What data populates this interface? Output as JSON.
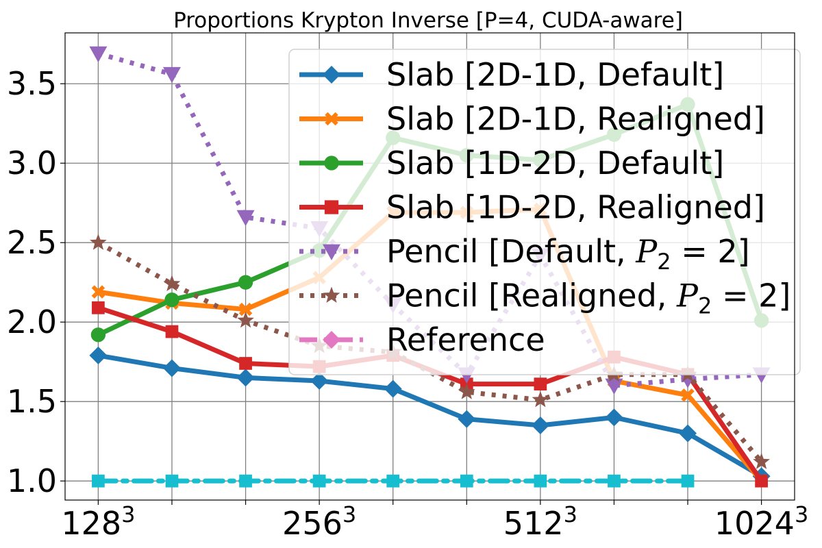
{
  "chart_data": {
    "type": "line",
    "title": "Proportions Krypton Inverse [P=4, CUDA-aware]",
    "xlabel": "",
    "ylabel": "",
    "x_positions": [
      0,
      1,
      2,
      3,
      4,
      5,
      6,
      7,
      8,
      9
    ],
    "x_tick_labels": [
      {
        "pos": 0,
        "base": "128",
        "exp": "3"
      },
      {
        "pos": 3,
        "base": "256",
        "exp": "3"
      },
      {
        "pos": 6,
        "base": "512",
        "exp": "3"
      },
      {
        "pos": 9,
        "base": "1024",
        "exp": "3"
      }
    ],
    "ylim": [
      0.88,
      3.82
    ],
    "y_ticks": [
      1.0,
      1.5,
      2.0,
      2.5,
      3.0,
      3.5
    ],
    "y_tick_labels": [
      "1.0",
      "1.5",
      "2.0",
      "2.5",
      "3.0",
      "3.5"
    ],
    "grid": true,
    "legend_position": "upper-right",
    "series": [
      {
        "name": "Slab [2D-1D, Default]",
        "color": "#1f77b4",
        "marker": "diamond",
        "dash": "solid",
        "values": [
          1.79,
          1.71,
          1.65,
          1.63,
          1.58,
          1.39,
          1.35,
          1.4,
          1.3,
          1.03
        ]
      },
      {
        "name": "Slab [2D-1D, Realigned]",
        "color": "#ff7f0e",
        "marker": "x",
        "dash": "solid",
        "values": [
          2.19,
          2.12,
          2.08,
          2.28,
          2.69,
          2.69,
          2.71,
          1.63,
          1.54,
          1.0
        ]
      },
      {
        "name": "Slab [1D-2D, Default]",
        "color": "#2ca02c",
        "marker": "circle",
        "dash": "solid",
        "values": [
          1.92,
          2.14,
          2.25,
          2.45,
          3.16,
          3.05,
          3.02,
          3.18,
          3.37,
          2.01
        ]
      },
      {
        "name": "Slab [1D-2D, Realigned]",
        "color": "#d62728",
        "marker": "square",
        "dash": "solid",
        "values": [
          2.09,
          1.94,
          1.74,
          1.72,
          1.79,
          1.61,
          1.61,
          1.78,
          1.67,
          1.0
        ]
      },
      {
        "name_prefix": "Pencil [Default, ",
        "name_math_var": "P",
        "name_math_sub": "2",
        "name_suffix": " = 2]",
        "color": "#9467bd",
        "marker": "triangle-down",
        "dash": "dotted",
        "values": [
          3.69,
          3.56,
          2.66,
          2.59,
          2.11,
          1.67,
          2.42,
          1.6,
          1.64,
          1.67
        ]
      },
      {
        "name_prefix": "Pencil [Realigned, ",
        "name_math_var": "P",
        "name_math_sub": "2",
        "name_suffix": " = 2]",
        "color": "#8c564b",
        "marker": "star",
        "dash": "dotted",
        "values": [
          2.5,
          2.24,
          2.01,
          1.85,
          1.81,
          1.56,
          1.51,
          1.67,
          1.67,
          1.12
        ]
      },
      {
        "name": "Reference",
        "color": "#e377c2",
        "marker": "diamond",
        "dash": "dashdot",
        "values": [
          1.0,
          1.0,
          1.0,
          1.0,
          1.0,
          1.0,
          1.0,
          1.0,
          1.0,
          1.0
        ],
        "in_legend_only": true
      },
      {
        "color": "#17becf",
        "marker": "square",
        "dash": "dashdot",
        "values": [
          1.0,
          1.0,
          1.0,
          1.0,
          1.0,
          1.0,
          1.0,
          1.0,
          1.0
        ]
      }
    ]
  }
}
